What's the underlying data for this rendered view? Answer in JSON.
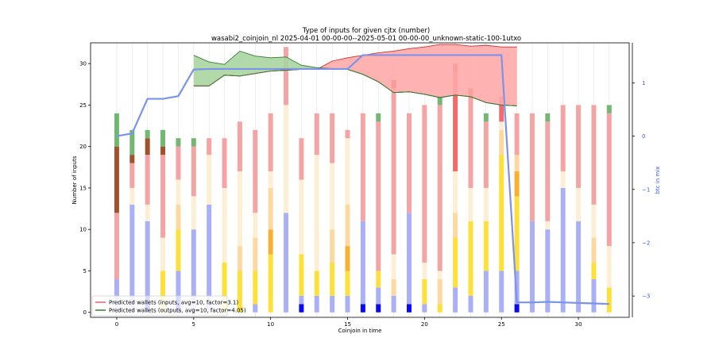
{
  "chart_data": {
    "type": "bar",
    "title": "Type of inputs for given cjtx (number)",
    "subtitle": "wasabi2_coinjoin_nl 2025-04-01 00-00-00--2025-05-01 00-00-00_unknown-static-100-1utxo",
    "xlabel": "Coinjoin in time",
    "ylabel": "Number of inputs",
    "y2label": "btc in mix",
    "xlim": [
      -1.7,
      33.3
    ],
    "ylim": [
      -0.6,
      32.5
    ],
    "y2lim": [
      -3.4,
      1.75
    ],
    "xticks": [
      0,
      5,
      10,
      15,
      20,
      25,
      30
    ],
    "yticks": [
      0,
      5,
      10,
      15,
      20,
      25,
      30
    ],
    "y2ticks": [
      -3,
      -2,
      -1,
      0,
      1
    ],
    "grid": "vertical",
    "legend_position": "lower-left",
    "colors": {
      "blue_dark": "#0a0aee",
      "blue_light": "#aab0f5",
      "yellow": "#fde03a",
      "orange": "#f8b030",
      "peach": "#fcd9a0",
      "cream": "#fdefd6",
      "pink": "#f4a4a4",
      "red": "#f26b6b",
      "darkred": "#c01c10",
      "brown": "#a0522d",
      "green": "#72b872",
      "fill_red": "#ffaaaa",
      "fill_green": "#a8d5a0",
      "line_red": "#d32f2f",
      "line_green": "#2e7d32",
      "btc_line": "#7b93e8"
    },
    "stack_order": [
      "blue_dark",
      "blue_light",
      "yellow",
      "orange",
      "peach",
      "cream",
      "pink",
      "red",
      "darkred",
      "brown",
      "green"
    ],
    "bars": [
      {
        "x": 0,
        "blue_light": 4,
        "pink": 8,
        "brown": 8,
        "green": 4
      },
      {
        "x": 1,
        "blue_light": 13,
        "cream": 2,
        "pink": 3,
        "brown": 1,
        "green": 3
      },
      {
        "x": 2,
        "blue_dark": 2,
        "blue_light": 9,
        "cream": 2,
        "pink": 6,
        "brown": 2,
        "green": 1
      },
      {
        "x": 3,
        "yellow": 5,
        "cream": 4,
        "pink": 10,
        "brown": 1,
        "green": 2
      },
      {
        "x": 4,
        "blue_dark": 2,
        "blue_light": 3,
        "yellow": 5,
        "peach": 3,
        "cream": 3,
        "pink": 4,
        "green": 1
      },
      {
        "x": 5,
        "blue_light": 10,
        "cream": 4,
        "pink": 6,
        "green": 1
      },
      {
        "x": 6,
        "blue_light": 13,
        "cream": 6,
        "pink": 2
      },
      {
        "x": 7,
        "yellow": 6,
        "cream": 9,
        "pink": 6
      },
      {
        "x": 8,
        "yellow": 5,
        "peach": 3,
        "cream": 9,
        "pink": 6
      },
      {
        "x": 9,
        "blue_light": 1,
        "yellow": 4,
        "peach": 4,
        "cream": 3,
        "pink": 10
      },
      {
        "x": 10,
        "yellow": 7,
        "peach": 5,
        "orange": 3,
        "cream": 2,
        "pink": 7
      },
      {
        "x": 11,
        "blue_light": 12,
        "cream": 13,
        "pink": 7
      },
      {
        "x": 12,
        "blue_dark": 1,
        "blue_light": 1,
        "yellow": 5,
        "cream": 9,
        "pink": 5
      },
      {
        "x": 13,
        "blue_light": 2,
        "yellow": 3,
        "cream": 14,
        "pink": 5
      },
      {
        "x": 14,
        "blue_light": 2,
        "yellow": 4,
        "peach": 4,
        "cream": 8,
        "pink": 6
      },
      {
        "x": 15,
        "blue_light": 2,
        "yellow": 3,
        "peach": 5,
        "orange": 3,
        "cream": 8,
        "pink": 1
      },
      {
        "x": 16,
        "blue_dark": 1,
        "blue_light": 10,
        "pink": 13
      },
      {
        "x": 17,
        "blue_dark": 1,
        "blue_light": 2,
        "yellow": 2,
        "pink": 18,
        "green": 1
      },
      {
        "x": 18,
        "blue_light": 2,
        "peach": 2,
        "cream": 3,
        "pink": 20,
        "darkred": 1
      },
      {
        "x": 19,
        "blue_dark": 1,
        "blue_light": 11,
        "pink": 12
      },
      {
        "x": 20,
        "blue_light": 1,
        "yellow": 3,
        "cream": 2,
        "pink": 19
      },
      {
        "x": 21,
        "yellow": 1,
        "peach": 3,
        "cream": 1,
        "pink": 20,
        "green": 1
      },
      {
        "x": 22,
        "blue_light": 3,
        "yellow": 6,
        "peach": 3,
        "cream": 5,
        "red": 12,
        "brown": 1
      },
      {
        "x": 23,
        "blue_light": 2,
        "yellow": 9,
        "cream": 4,
        "pink": 11,
        "brown": 1
      },
      {
        "x": 24,
        "blue_light": 5,
        "yellow": 6,
        "cream": 4,
        "pink": 8,
        "green": 1
      },
      {
        "x": 25,
        "blue_light": 5,
        "yellow": 14,
        "peach": 3,
        "cream": 1,
        "red": 3
      },
      {
        "x": 26,
        "blue_dark": 1,
        "blue_light": 4,
        "yellow": 9,
        "peach": 2,
        "orange": 3,
        "pink": 5
      },
      {
        "x": 27,
        "blue_light": 11,
        "pink": 13
      },
      {
        "x": 28,
        "blue_light": 10,
        "cream": 1,
        "pink": 12,
        "green": 1
      },
      {
        "x": 29,
        "blue_light": 15,
        "cream": 2,
        "pink": 8
      },
      {
        "x": 30,
        "blue_light": 11,
        "cream": 4,
        "pink": 10
      },
      {
        "x": 31,
        "blue_light": 4,
        "yellow": 2,
        "peach": 3,
        "cream": 4,
        "pink": 12
      },
      {
        "x": 32,
        "yellow": 3,
        "cream": 5,
        "pink": 16,
        "green": 1
      }
    ],
    "predicted_inputs": {
      "x": [
        5,
        6,
        7,
        8,
        9,
        10,
        11,
        12,
        13,
        14,
        15,
        16,
        17,
        18,
        19,
        20,
        21,
        22,
        23,
        24,
        25,
        26
      ],
      "lower": [
        27.3,
        27.3,
        28.6,
        28.5,
        28.8,
        29.1,
        29.2,
        29.3,
        29.3,
        29.3,
        29.3,
        28.7,
        27.8,
        26.5,
        26.6,
        26.3,
        25.9,
        26.2,
        26.0,
        25.3,
        25.0,
        24.9
      ],
      "upper": [
        27.3,
        27.3,
        28.6,
        28.5,
        28.8,
        29.1,
        29.2,
        29.3,
        29.3,
        30.3,
        30.7,
        31.0,
        31.3,
        31.5,
        31.8,
        32.0,
        32.3,
        32.3,
        32.1,
        32.2,
        32.0,
        32.0
      ]
    },
    "predicted_outputs": {
      "x": [
        5,
        6,
        7,
        8,
        9,
        10,
        11,
        12,
        13,
        14,
        15,
        16,
        17,
        18,
        19,
        20,
        21,
        22,
        23,
        24,
        25,
        26
      ],
      "upper": [
        31.0,
        30.2,
        29.9,
        31.5,
        30.9,
        30.7,
        30.8,
        29.8,
        29.5,
        29.4,
        29.3,
        28.7,
        27.8,
        26.5,
        26.6,
        26.3,
        25.9,
        26.2,
        26.0,
        25.3,
        25.0,
        24.9
      ],
      "lower": [
        27.3,
        27.3,
        28.6,
        28.5,
        28.8,
        29.1,
        29.2,
        29.3,
        29.3,
        29.3,
        29.3,
        28.7,
        27.8,
        26.5,
        26.6,
        26.3,
        25.9,
        26.2,
        26.0,
        25.3,
        25.0,
        24.9
      ]
    },
    "btc_in_mix": {
      "x": [
        0,
        1,
        2,
        3,
        4,
        5,
        6,
        7,
        8,
        9,
        10,
        11,
        12,
        13,
        14,
        15,
        16,
        17,
        18,
        19,
        20,
        21,
        22,
        23,
        24,
        25,
        26,
        27,
        28,
        29,
        30,
        31,
        32
      ],
      "y": [
        0.0,
        0.05,
        0.7,
        0.7,
        0.75,
        1.25,
        1.26,
        1.26,
        1.26,
        1.26,
        1.26,
        1.26,
        1.26,
        1.26,
        1.26,
        1.26,
        1.52,
        1.52,
        1.52,
        1.52,
        1.52,
        1.52,
        1.52,
        1.52,
        1.52,
        1.52,
        -3.12,
        -3.12,
        -3.11,
        -3.12,
        -3.13,
        -3.14,
        -3.15
      ]
    },
    "legend": [
      {
        "label": "Predicted wallets (inputs, avg=10, factor=3.1)",
        "color": "#e06666"
      },
      {
        "label": "Predicted wallets (outputs, avg=10, factor=4.05)",
        "color": "#2e7d32"
      }
    ]
  }
}
